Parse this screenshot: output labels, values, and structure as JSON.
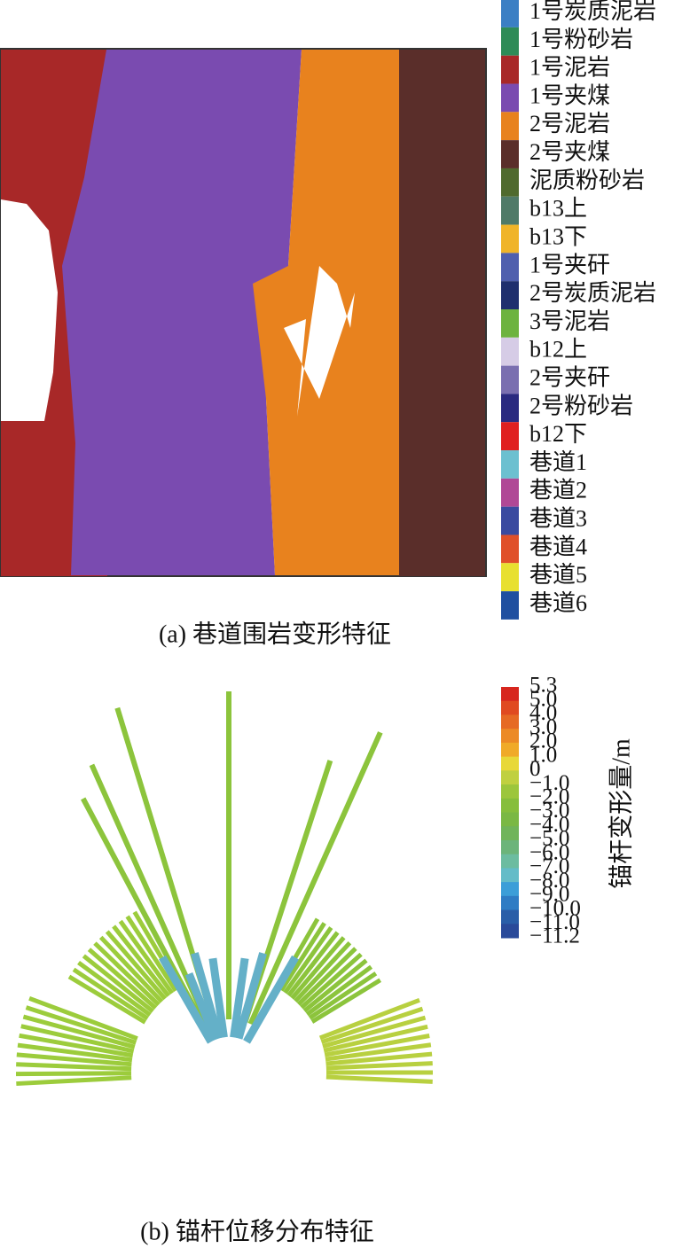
{
  "panel_a": {
    "caption": "(a) 巷道围岩变形特征",
    "legend": [
      {
        "label": "1号炭质泥岩",
        "color": "#3b7fc4"
      },
      {
        "label": "1号粉砂岩",
        "color": "#2e8b57"
      },
      {
        "label": "1号泥岩",
        "color": "#a82828"
      },
      {
        "label": "1号夹煤",
        "color": "#7a4bb0"
      },
      {
        "label": "2号泥岩",
        "color": "#e8821e"
      },
      {
        "label": "2号夹煤",
        "color": "#5a2e2a"
      },
      {
        "label": "泥质粉砂岩",
        "color": "#4f6a2e"
      },
      {
        "label": "b13上",
        "color": "#4f7a68"
      },
      {
        "label": "b13下",
        "color": "#f0b429"
      },
      {
        "label": "1号夹矸",
        "color": "#4f5fae"
      },
      {
        "label": "2号炭质泥岩",
        "color": "#1f2f6e"
      },
      {
        "label": "3号泥岩",
        "color": "#6db33f"
      },
      {
        "label": "b12上",
        "color": "#d6cce6"
      },
      {
        "label": "2号夹矸",
        "color": "#7a6fb0"
      },
      {
        "label": "2号粉砂岩",
        "color": "#2a2a80"
      },
      {
        "label": "b12下",
        "color": "#e02020"
      },
      {
        "label": "巷道1",
        "color": "#6cc0d0"
      },
      {
        "label": "巷道2",
        "color": "#b04896"
      },
      {
        "label": "巷道3",
        "color": "#3a4aa0"
      },
      {
        "label": "巷道4",
        "color": "#e0502a"
      },
      {
        "label": "巷道5",
        "color": "#e8e030"
      },
      {
        "label": "巷道6",
        "color": "#1f4fa0"
      }
    ]
  },
  "panel_b": {
    "caption": "(b) 锚杆位移分布特征",
    "colorbar_label": "锚杆变形量/m",
    "colorbar_ticks": [
      "5.3",
      "5.0",
      "4.0",
      "3.0",
      "2.0",
      "1.0",
      "0",
      "−1.0",
      "−2.0",
      "−3.0",
      "−4.0",
      "−5.0",
      "−6.0",
      "−7.0",
      "−8.0",
      "−9.0",
      "−10.0",
      "−11.0",
      "−11.2"
    ],
    "colorbar_colors": [
      "#d7261e",
      "#e04a20",
      "#e66a24",
      "#ec8a26",
      "#f0aa28",
      "#e8d838",
      "#c0d040",
      "#9cc63c",
      "#86be3c",
      "#7ab844",
      "#70b45a",
      "#6cb47a",
      "#6cbca0",
      "#64bcc8",
      "#3c9ed8",
      "#2f7cc4",
      "#2a5ea8",
      "#2a4a9a"
    ]
  }
}
